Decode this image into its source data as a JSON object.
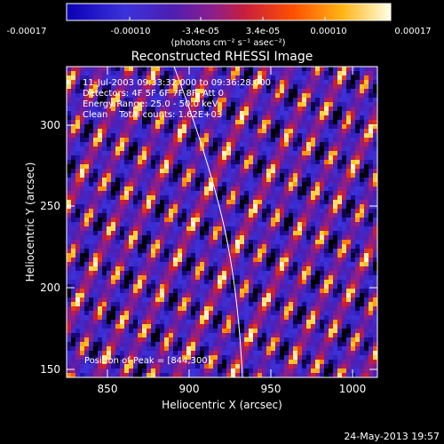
{
  "colorbar": {
    "tick_labels": [
      "-0.00017",
      "-0.00010",
      "-3.4e-05",
      "3.4e-05",
      "0.00010",
      "0.00017"
    ],
    "unit_label": "(photons cm⁻² s⁻¹ asec⁻²)"
  },
  "image": {
    "title": "Reconstructed RHESSI Image",
    "annotations": [
      "11-Jul-2003 09:33:32.000 to 09:36:28.000",
      "Detectors: 4F 5F 6F 7F 8F, Att 0",
      "Energy Range: 25.0 - 50.0 keV",
      "Clean    Total counts: 1.62E+03"
    ],
    "peak_label": "Position of Peak = [844,300]",
    "x_axis": {
      "label": "Heliocentric X (arcsec)",
      "range": [
        825,
        1015
      ],
      "ticks": [
        "850",
        "900",
        "950",
        "1000"
      ]
    },
    "y_axis": {
      "label": "Heliocentric Y (arcsec)",
      "range": [
        145,
        332
      ],
      "ticks": [
        "150",
        "200",
        "250",
        "300"
      ]
    },
    "limb_color": "#ffffff",
    "colormap": [
      "#000000",
      "#1e0a8c",
      "#3c32dc",
      "#4b1eb4",
      "#8c1e8c",
      "#d21e28",
      "#ff6e00",
      "#ffcd28",
      "#ffffe6"
    ]
  },
  "footer": {
    "timestamp": "24-May-2013 19:57"
  }
}
